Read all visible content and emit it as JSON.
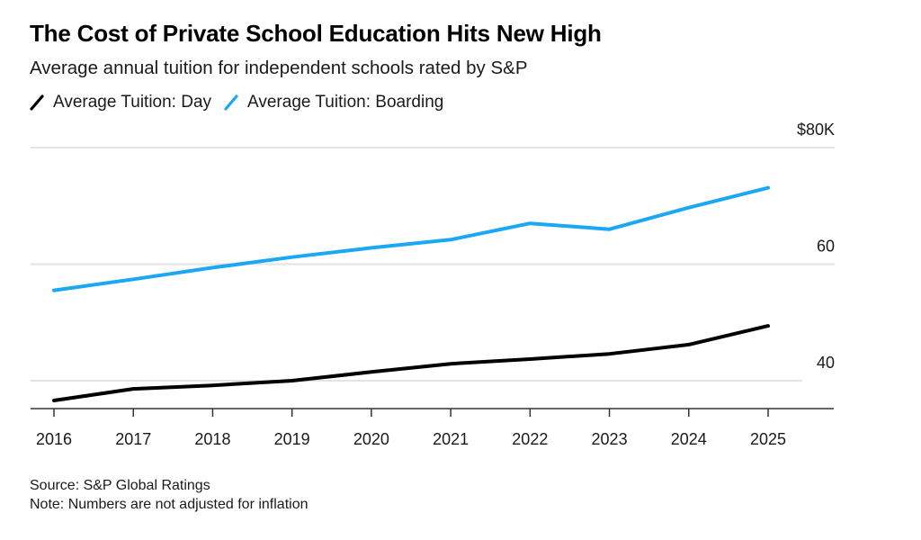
{
  "header": {
    "title": "The Cost of Private School Education Hits New High",
    "subtitle": "Average annual tuition for independent schools rated by S&P"
  },
  "legend": [
    {
      "label": "Average Tuition: Day",
      "icon": "diagonal-line-icon",
      "color": "#000000"
    },
    {
      "label": "Average Tuition: Boarding",
      "icon": "diagonal-line-icon",
      "color": "#1aa8f5"
    }
  ],
  "footer": {
    "source": "Source: S&P Global Ratings",
    "note": "Note: Numbers are not adjusted for inflation"
  },
  "chart_data": {
    "type": "line",
    "title": "The Cost of Private School Education Hits New High",
    "subtitle": "Average annual tuition for independent schools rated by S&P",
    "xlabel": "",
    "ylabel": "",
    "x": [
      "2016",
      "2017",
      "2018",
      "2019",
      "2020",
      "2021",
      "2022",
      "2023",
      "2024",
      "2025"
    ],
    "series": [
      {
        "name": "Average Tuition: Day",
        "color": "#000000",
        "values": [
          36.6,
          38.6,
          39.2,
          40.0,
          41.5,
          42.9,
          43.7,
          44.6,
          46.2,
          49.4
        ]
      },
      {
        "name": "Average Tuition: Boarding",
        "color": "#1aa8f5",
        "values": [
          55.5,
          57.4,
          59.4,
          61.2,
          62.8,
          64.2,
          67.0,
          66.0,
          69.7,
          73.1
        ]
      }
    ],
    "y_unit": "thousands USD",
    "ylim": [
      35.2,
      81
    ],
    "yticks": [
      {
        "value": 40,
        "label": "40"
      },
      {
        "value": 60,
        "label": "60"
      },
      {
        "value": 80,
        "label": "$80K"
      }
    ],
    "grid": true,
    "y_axis_position": "right",
    "legend_position": "top-left"
  }
}
